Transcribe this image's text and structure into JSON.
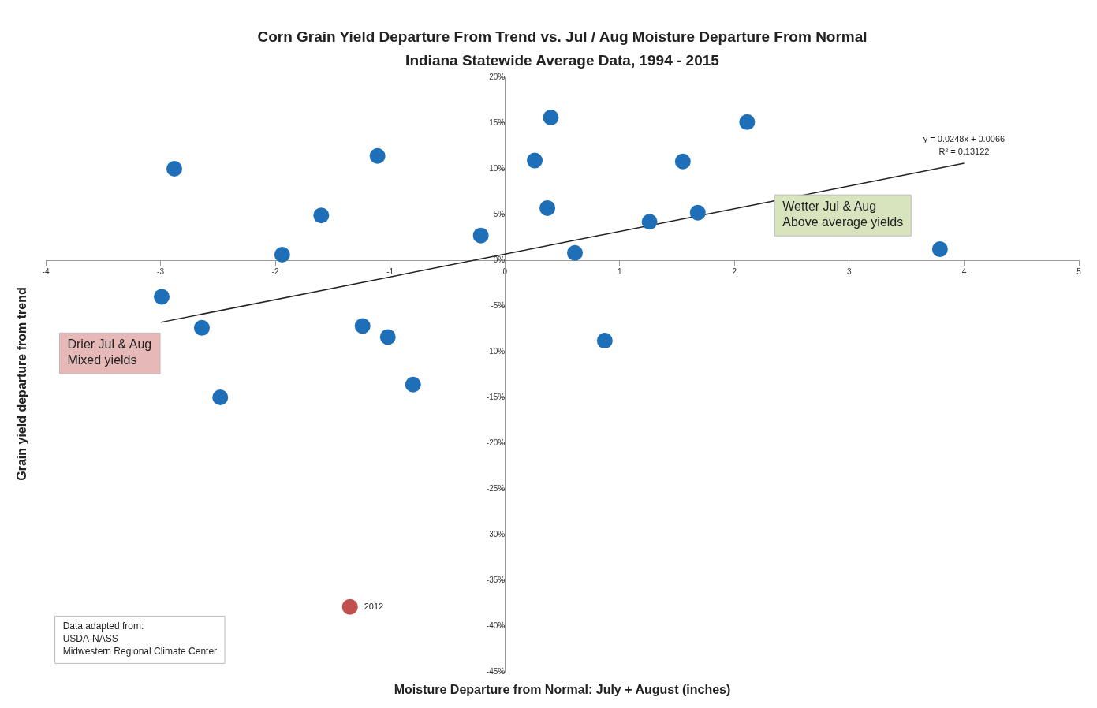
{
  "chart_data": {
    "type": "scatter",
    "title": "Corn Grain Yield Departure From Trend vs. Jul / Aug Moisture Departure From Normal",
    "subtitle": "Indiana Statewide Average Data, 1994 - 2015",
    "xlabel": "Moisture Departure from Normal: July + August (inches)",
    "ylabel": "Grain yield departure from trend",
    "xlim": [
      -4,
      5
    ],
    "xticks": [
      -4,
      -3,
      -2,
      -1,
      0,
      1,
      2,
      3,
      4,
      5
    ],
    "ylim": [
      -45,
      20
    ],
    "yticks": [
      {
        "value": 20,
        "label": "20%"
      },
      {
        "value": 15,
        "label": "15%"
      },
      {
        "value": 10,
        "label": "10%"
      },
      {
        "value": 5,
        "label": "5%"
      },
      {
        "value": 0,
        "label": "0%"
      },
      {
        "value": -5,
        "label": "-5%"
      },
      {
        "value": -10,
        "label": "-10%"
      },
      {
        "value": -15,
        "label": "-15%"
      },
      {
        "value": -20,
        "label": "-20%"
      },
      {
        "value": -25,
        "label": "-25%"
      },
      {
        "value": -30,
        "label": "-30%"
      },
      {
        "value": -35,
        "label": "-35%"
      },
      {
        "value": -40,
        "label": "-40%"
      },
      {
        "value": -45,
        "label": "-45%"
      }
    ],
    "legend": false,
    "marker": "circle",
    "series": [
      {
        "color": "#1f6fb8",
        "x": [
          -2.88,
          -2.99,
          -2.64,
          -2.48,
          -1.94,
          -1.6,
          -1.11,
          -1.24,
          -1.02,
          -0.8,
          -0.21,
          0.26,
          0.4,
          0.37,
          0.61,
          0.87,
          1.26,
          1.55,
          1.68,
          2.11,
          3.79
        ],
        "values": [
          10.0,
          -4.0,
          -7.4,
          -15.0,
          0.6,
          4.9,
          11.4,
          -7.2,
          -8.4,
          -13.6,
          2.7,
          10.9,
          15.6,
          5.7,
          0.8,
          -8.8,
          4.2,
          10.8,
          5.2,
          15.1,
          1.2
        ]
      },
      {
        "color": "#c0504d",
        "x": [
          -1.35
        ],
        "values": [
          -37.9
        ]
      },
      {
        "type": "line",
        "color": "#222222",
        "x": [
          -3,
          4
        ],
        "values": [
          -6.8,
          10.6
        ],
        "marker": "none"
      }
    ],
    "annotations": [
      {
        "text": "2012",
        "x": -1.35,
        "y": -37.9
      },
      {
        "text": "y = 0.0248x + 0.0066\nR² = 0.13122",
        "x": 4,
        "y": 10.58
      },
      "Wetter Jul & Aug\nAbove average yields",
      "Drier Jul & Aug\nMixed yields",
      "Data adapted from:\nUSDA-NASS\nMidwestern Regional Climate Center"
    ]
  }
}
